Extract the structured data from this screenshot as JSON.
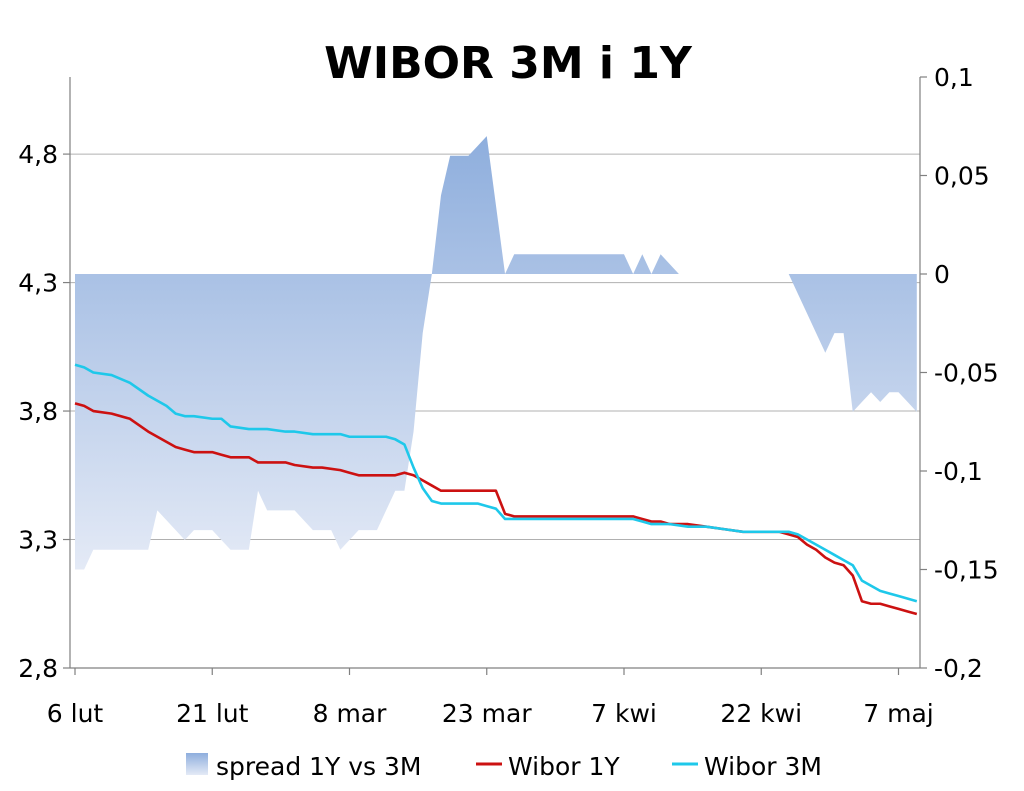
{
  "chart_data": {
    "type": "line",
    "title": "WIBOR 3M i 1Y",
    "x_tick_labels": [
      "6 lut",
      "21 lut",
      "8 mar",
      "23 mar",
      "7 kwi",
      "22 kwi",
      "7 maj"
    ],
    "x_tick_days": [
      0,
      15,
      30,
      45,
      60,
      75,
      90
    ],
    "y_left": {
      "min": 2.8,
      "max": 5.1,
      "ticks": [
        2.8,
        3.3,
        3.8,
        4.3,
        4.8
      ],
      "tick_labels": [
        "2,8",
        "3,3",
        "3,8",
        "4,3",
        "4,8"
      ]
    },
    "y_right": {
      "min": -0.2,
      "max": 0.1,
      "ticks": [
        -0.2,
        -0.15,
        -0.1,
        -0.05,
        0,
        0.05,
        0.1
      ],
      "tick_labels": [
        "-0,2",
        "-0,15",
        "-0,1",
        "-0,05",
        "0",
        "0,05",
        "0,1"
      ]
    },
    "grid": "horizontal",
    "legend_position": "bottom",
    "legend": [
      "spread 1Y vs 3M",
      "Wibor 1Y",
      "Wibor 3M"
    ],
    "colors": {
      "spread_top": "#8eaedd",
      "spread_bottom": "#e4eaf6",
      "wibor_1y": "#cc1111",
      "wibor_3m": "#1ec8ea",
      "grid": "#b0b0b0",
      "axis": "#808080"
    },
    "series": [
      {
        "name": "spread 1Y vs 3M",
        "axis": "right",
        "kind": "area",
        "x": [
          0,
          1,
          2,
          4,
          6,
          8,
          9,
          10,
          11,
          12,
          13,
          15,
          16,
          17,
          19,
          20,
          21,
          22,
          23,
          24,
          26,
          27,
          28,
          29,
          30,
          31,
          33,
          34,
          35,
          36,
          37,
          38,
          39,
          40,
          41,
          42,
          43,
          44,
          45,
          46,
          47,
          48,
          49,
          50,
          51,
          52,
          54,
          56,
          58,
          60,
          61,
          62,
          63,
          64,
          65,
          66,
          67,
          68,
          69,
          70,
          71,
          72,
          73,
          74,
          75,
          76,
          77,
          78,
          79,
          80,
          81,
          82,
          83,
          84,
          85,
          86,
          87,
          88,
          89,
          90,
          91,
          92
        ],
        "values": [
          -0.15,
          -0.15,
          -0.14,
          -0.14,
          -0.14,
          -0.14,
          -0.12,
          -0.125,
          -0.13,
          -0.135,
          -0.13,
          -0.13,
          -0.135,
          -0.14,
          -0.14,
          -0.11,
          -0.12,
          -0.12,
          -0.12,
          -0.12,
          -0.13,
          -0.13,
          -0.13,
          -0.14,
          -0.135,
          -0.13,
          -0.13,
          -0.12,
          -0.11,
          -0.11,
          -0.08,
          -0.03,
          0.0,
          0.04,
          0.06,
          0.06,
          0.06,
          0.065,
          0.07,
          0.035,
          0.0,
          0.01,
          0.01,
          0.01,
          0.01,
          0.01,
          0.01,
          0.01,
          0.01,
          0.01,
          0.0,
          0.01,
          0.0,
          0.01,
          0.005,
          0.0,
          0.0,
          0.0,
          0.0,
          0.0,
          0.0,
          0.0,
          0.0,
          0.0,
          0.0,
          0.0,
          0.0,
          0.0,
          -0.01,
          -0.02,
          -0.03,
          -0.04,
          -0.03,
          -0.03,
          -0.07,
          -0.065,
          -0.06,
          -0.065,
          -0.06,
          -0.06,
          -0.065,
          -0.07
        ]
      },
      {
        "name": "Wibor 1Y",
        "axis": "left",
        "kind": "line",
        "x": [
          0,
          1,
          2,
          4,
          6,
          8,
          10,
          11,
          12,
          13,
          15,
          16,
          17,
          19,
          20,
          21,
          23,
          24,
          26,
          27,
          29,
          30,
          31,
          33,
          34,
          35,
          36,
          37,
          38,
          39,
          40,
          41,
          42,
          43,
          44,
          45,
          46,
          47,
          48,
          50,
          52,
          54,
          56,
          58,
          60,
          61,
          62,
          63,
          64,
          65,
          67,
          69,
          71,
          73,
          75,
          76,
          77,
          78,
          79,
          80,
          81,
          82,
          83,
          84,
          85,
          86,
          87,
          88,
          89,
          90,
          91,
          92
        ],
        "values": [
          3.83,
          3.82,
          3.8,
          3.79,
          3.77,
          3.72,
          3.68,
          3.66,
          3.65,
          3.64,
          3.64,
          3.63,
          3.62,
          3.62,
          3.6,
          3.6,
          3.6,
          3.59,
          3.58,
          3.58,
          3.57,
          3.56,
          3.55,
          3.55,
          3.55,
          3.55,
          3.56,
          3.55,
          3.53,
          3.51,
          3.49,
          3.49,
          3.49,
          3.49,
          3.49,
          3.49,
          3.49,
          3.4,
          3.39,
          3.39,
          3.39,
          3.39,
          3.39,
          3.39,
          3.39,
          3.39,
          3.38,
          3.37,
          3.37,
          3.36,
          3.36,
          3.35,
          3.34,
          3.33,
          3.33,
          3.33,
          3.33,
          3.32,
          3.31,
          3.28,
          3.26,
          3.23,
          3.21,
          3.2,
          3.16,
          3.06,
          3.05,
          3.05,
          3.04,
          3.03,
          3.02,
          3.01
        ]
      },
      {
        "name": "Wibor 3M",
        "axis": "left",
        "kind": "line",
        "x": [
          0,
          1,
          2,
          4,
          6,
          8,
          9,
          10,
          11,
          12,
          13,
          15,
          16,
          17,
          19,
          20,
          21,
          23,
          24,
          26,
          27,
          29,
          30,
          31,
          33,
          34,
          35,
          36,
          37,
          38,
          39,
          40,
          41,
          42,
          43,
          44,
          45,
          46,
          47,
          48,
          50,
          52,
          54,
          56,
          58,
          60,
          61,
          62,
          63,
          64,
          65,
          67,
          69,
          71,
          73,
          75,
          76,
          77,
          78,
          79,
          80,
          81,
          82,
          83,
          84,
          85,
          86,
          87,
          88,
          89,
          90,
          91,
          92
        ],
        "values": [
          3.98,
          3.97,
          3.95,
          3.94,
          3.91,
          3.86,
          3.84,
          3.82,
          3.79,
          3.78,
          3.78,
          3.77,
          3.77,
          3.74,
          3.73,
          3.73,
          3.73,
          3.72,
          3.72,
          3.71,
          3.71,
          3.71,
          3.7,
          3.7,
          3.7,
          3.7,
          3.69,
          3.67,
          3.58,
          3.5,
          3.45,
          3.44,
          3.44,
          3.44,
          3.44,
          3.44,
          3.43,
          3.42,
          3.38,
          3.38,
          3.38,
          3.38,
          3.38,
          3.38,
          3.38,
          3.38,
          3.38,
          3.37,
          3.36,
          3.36,
          3.36,
          3.35,
          3.35,
          3.34,
          3.33,
          3.33,
          3.33,
          3.33,
          3.33,
          3.32,
          3.3,
          3.28,
          3.26,
          3.24,
          3.22,
          3.2,
          3.14,
          3.12,
          3.1,
          3.09,
          3.08,
          3.07,
          3.06
        ]
      }
    ]
  }
}
